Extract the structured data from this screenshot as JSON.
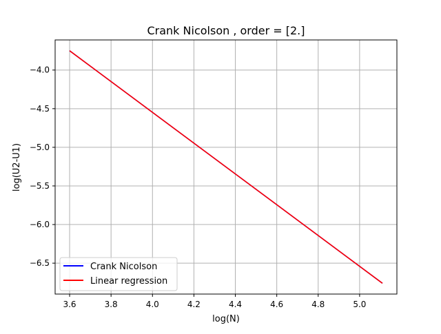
{
  "chart_data": {
    "type": "line",
    "title": "Crank Nicolson , order = [2.]",
    "xlabel": "log(N)",
    "ylabel": "log(U2-U1)",
    "xlim": [
      3.53,
      5.18
    ],
    "ylim": [
      -6.9,
      -3.61
    ],
    "x_ticks": [
      3.6,
      3.8,
      4.0,
      4.2,
      4.4,
      4.6,
      4.8,
      5.0
    ],
    "x_tick_labels": [
      "3.6",
      "3.8",
      "4.0",
      "4.2",
      "4.4",
      "4.6",
      "4.8",
      "5.0"
    ],
    "y_ticks": [
      -4.0,
      -4.5,
      -5.0,
      -5.5,
      -6.0,
      -6.5
    ],
    "y_tick_labels": [
      "−4.0",
      "−4.5",
      "−5.0",
      "−5.5",
      "−6.0",
      "−6.5"
    ],
    "grid": true,
    "legend_position": "lower-left",
    "series": [
      {
        "name": "Crank Nicolson",
        "color": "#0000ff",
        "x": [
          3.6,
          5.11
        ],
        "y": [
          -3.75,
          -6.76
        ]
      },
      {
        "name": "Linear regression",
        "color": "#ff0000",
        "x": [
          3.6,
          5.11
        ],
        "y": [
          -3.75,
          -6.76
        ]
      }
    ]
  }
}
